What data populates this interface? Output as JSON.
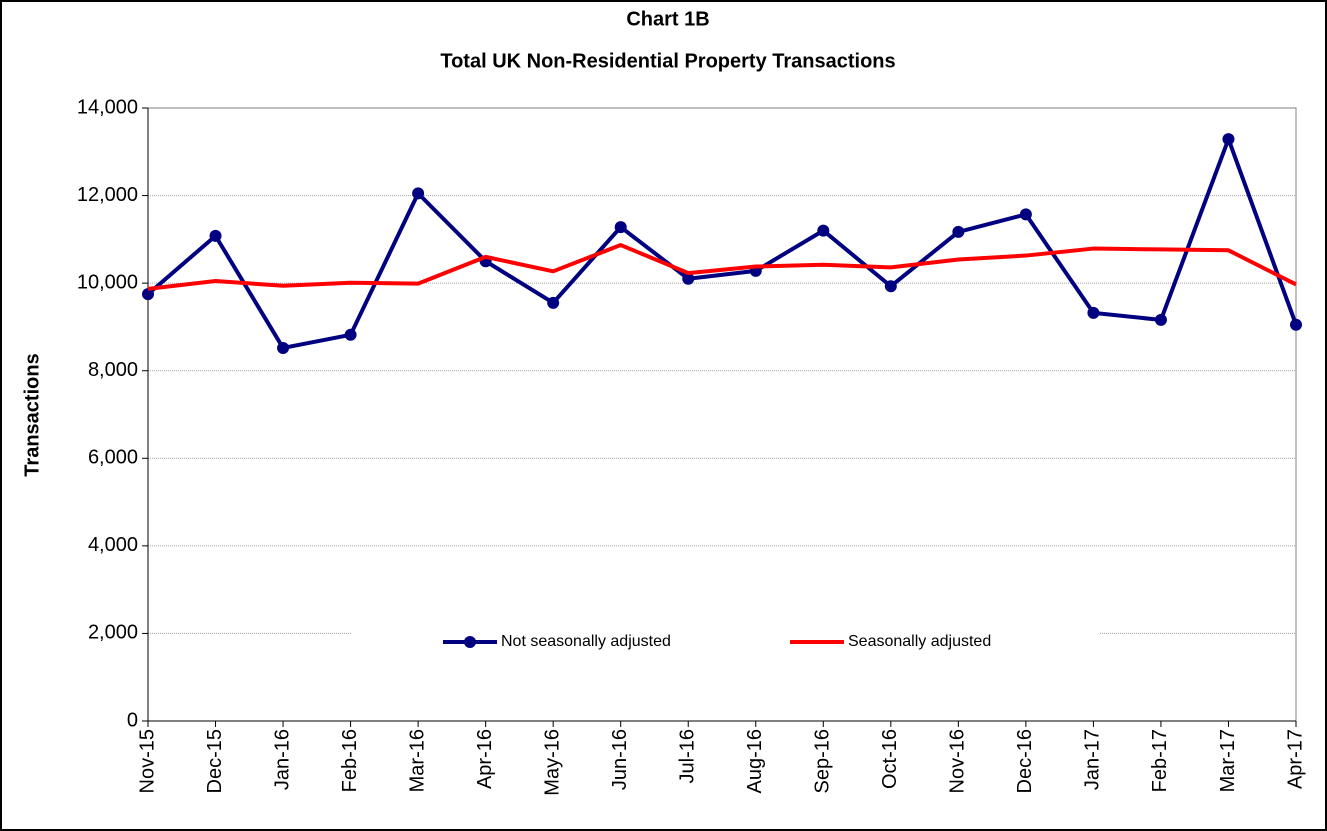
{
  "chart_data": {
    "type": "line",
    "title": "Chart 1B",
    "subtitle": "Total UK Non-Residential Property Transactions",
    "y_label": "Transactions",
    "categories": [
      "Nov-15",
      "Dec-15",
      "Jan-16",
      "Feb-16",
      "Mar-16",
      "Apr-16",
      "May-16",
      "Jun-16",
      "Jul-16",
      "Aug-16",
      "Sep-16",
      "Oct-16",
      "Nov-16",
      "Dec-16",
      "Jan-17",
      "Feb-17",
      "Mar-17",
      "Apr-17"
    ],
    "series": [
      {
        "name": "Not seasonally adjusted",
        "color": "#000080",
        "markers": true,
        "values": [
          9750,
          11080,
          8520,
          8820,
          12050,
          10500,
          9550,
          11280,
          10100,
          10280,
          11200,
          9930,
          11170,
          11570,
          9320,
          9160,
          13290,
          9050
        ]
      },
      {
        "name": "Seasonally adjusted",
        "color": "#ff0000",
        "markers": false,
        "values": [
          9870,
          10050,
          9940,
          10010,
          9990,
          10600,
          10270,
          10870,
          10230,
          10380,
          10420,
          10360,
          10540,
          10630,
          10790,
          10770,
          10750,
          9970
        ]
      }
    ],
    "ylim": [
      0,
      14000
    ],
    "yticks": [
      0,
      {
        "value": 2000,
        "label": "2,000"
      },
      {
        "value": 4000,
        "label": "4,000"
      },
      {
        "value": 6000,
        "label": "6,000"
      },
      {
        "value": 8000,
        "label": "8,000"
      },
      {
        "value": 10000,
        "label": "10,000"
      },
      {
        "value": 12000,
        "label": "12,000"
      },
      {
        "value": 14000,
        "label": "14,000"
      }
    ],
    "grid": true
  }
}
